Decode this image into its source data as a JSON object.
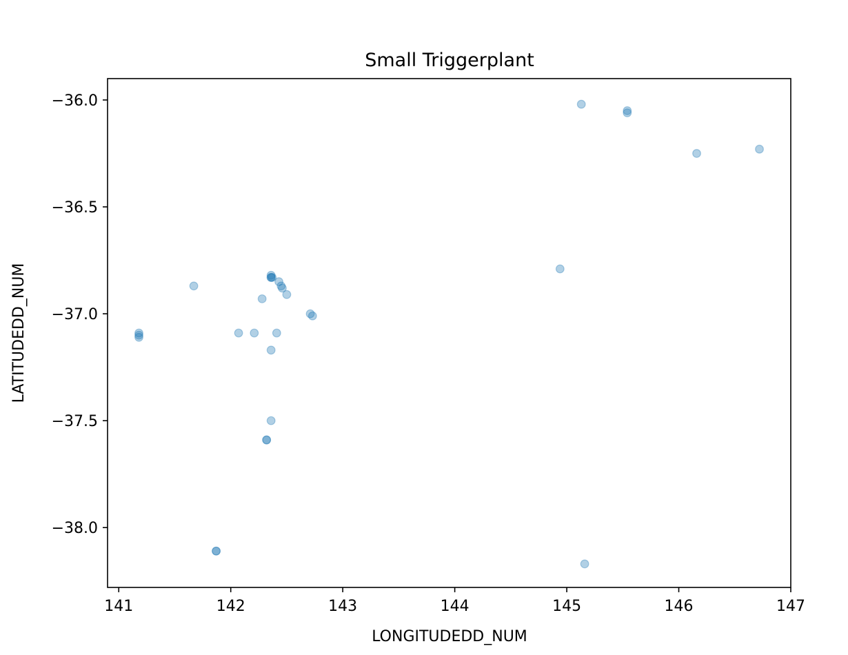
{
  "chart_data": {
    "type": "scatter",
    "title": "Small Triggerplant",
    "xlabel": "LONGITUDEDD_NUM",
    "ylabel": "LATITUDEDD_NUM",
    "xlim": [
      140.9,
      147.0
    ],
    "ylim": [
      -38.28,
      -35.9
    ],
    "xticks": [
      141,
      142,
      143,
      144,
      145,
      146,
      147
    ],
    "xtick_labels": [
      "141",
      "142",
      "143",
      "144",
      "145",
      "146",
      "147"
    ],
    "yticks": [
      -36.0,
      -36.5,
      -37.0,
      -37.5,
      -38.0
    ],
    "ytick_labels": [
      "−36.0",
      "−36.5",
      "−37.0",
      "−37.5",
      "−38.0"
    ],
    "grid": false,
    "legend": "none",
    "marker_color": "#1f77b4",
    "marker_alpha": 0.35,
    "points": [
      {
        "x": 141.18,
        "y": -37.09
      },
      {
        "x": 141.18,
        "y": -37.1
      },
      {
        "x": 141.18,
        "y": -37.11
      },
      {
        "x": 141.67,
        "y": -36.87
      },
      {
        "x": 141.87,
        "y": -38.11
      },
      {
        "x": 141.87,
        "y": -38.11
      },
      {
        "x": 142.07,
        "y": -37.09
      },
      {
        "x": 142.21,
        "y": -37.09
      },
      {
        "x": 142.28,
        "y": -36.93
      },
      {
        "x": 142.32,
        "y": -37.59
      },
      {
        "x": 142.32,
        "y": -37.59
      },
      {
        "x": 142.36,
        "y": -36.82
      },
      {
        "x": 142.36,
        "y": -36.83
      },
      {
        "x": 142.36,
        "y": -36.83
      },
      {
        "x": 142.37,
        "y": -36.83
      },
      {
        "x": 142.36,
        "y": -37.17
      },
      {
        "x": 142.36,
        "y": -37.5
      },
      {
        "x": 142.41,
        "y": -37.09
      },
      {
        "x": 142.43,
        "y": -36.85
      },
      {
        "x": 142.45,
        "y": -36.87
      },
      {
        "x": 142.46,
        "y": -36.88
      },
      {
        "x": 142.5,
        "y": -36.91
      },
      {
        "x": 142.71,
        "y": -37.0
      },
      {
        "x": 142.73,
        "y": -37.01
      },
      {
        "x": 144.94,
        "y": -36.79
      },
      {
        "x": 145.13,
        "y": -36.02
      },
      {
        "x": 145.16,
        "y": -38.17
      },
      {
        "x": 145.54,
        "y": -36.05
      },
      {
        "x": 145.54,
        "y": -36.06
      },
      {
        "x": 146.16,
        "y": -36.25
      },
      {
        "x": 146.72,
        "y": -36.23
      }
    ]
  }
}
